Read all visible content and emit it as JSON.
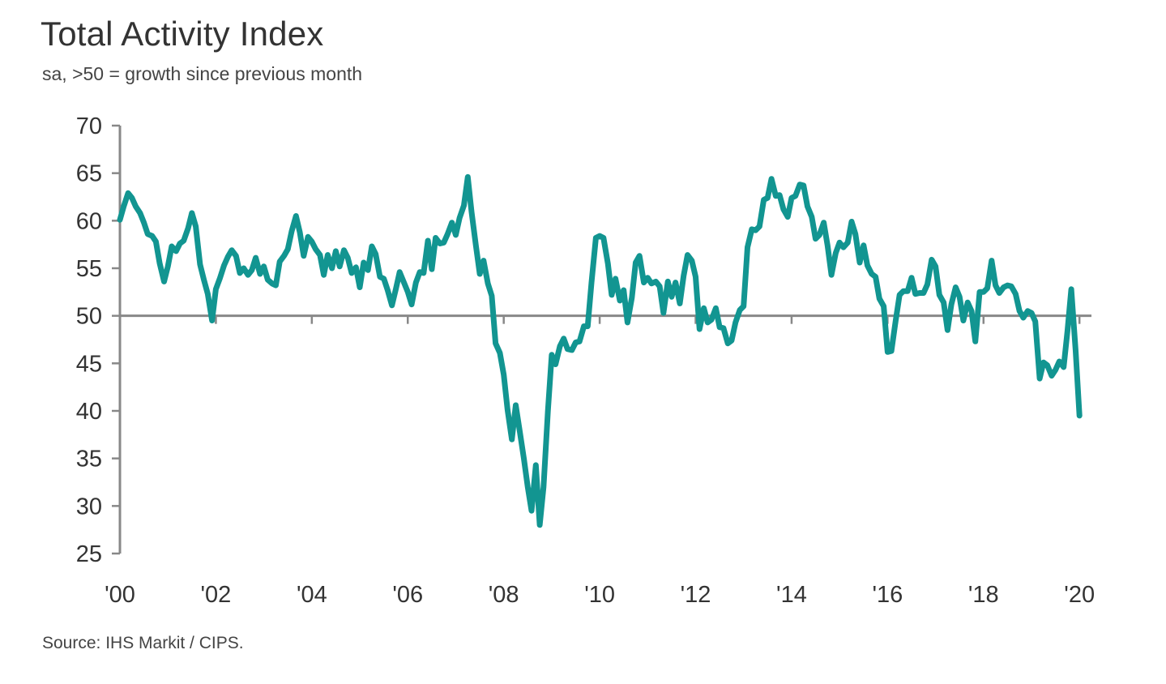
{
  "chart_data": {
    "type": "line",
    "title": "Total Activity Index",
    "subtitle": "sa, >50 = growth since previous month",
    "source": "Source: IHS Markit / CIPS.",
    "xlabel": "",
    "ylabel": "",
    "ylim": [
      25,
      70
    ],
    "xlim": [
      2000.0,
      2020.25
    ],
    "yticks": [
      "25",
      "30",
      "35",
      "40",
      "45",
      "50",
      "55",
      "60",
      "65",
      "70"
    ],
    "xticks": [
      {
        "year": 2000,
        "label": "'00"
      },
      {
        "year": 2002,
        "label": "'02"
      },
      {
        "year": 2004,
        "label": "'04"
      },
      {
        "year": 2006,
        "label": "'06"
      },
      {
        "year": 2008,
        "label": "'08"
      },
      {
        "year": 2010,
        "label": "'10"
      },
      {
        "year": 2012,
        "label": "'12"
      },
      {
        "year": 2014,
        "label": "'14"
      },
      {
        "year": 2016,
        "label": "'16"
      },
      {
        "year": 2018,
        "label": "'18"
      },
      {
        "year": 2020,
        "label": "'20"
      }
    ],
    "reference_line": 50,
    "grid": false,
    "colors": {
      "line": "#129591",
      "axis": "#888888"
    },
    "series": [
      {
        "points": [
          [
            2000.0,
            60.1
          ],
          [
            2000.08,
            61.5
          ],
          [
            2000.17,
            62.9
          ],
          [
            2000.25,
            62.4
          ],
          [
            2000.33,
            61.5
          ],
          [
            2000.42,
            60.8
          ],
          [
            2000.5,
            59.8
          ],
          [
            2000.58,
            58.6
          ],
          [
            2000.67,
            58.4
          ],
          [
            2000.75,
            57.8
          ],
          [
            2000.83,
            55.5
          ],
          [
            2000.92,
            53.6
          ],
          [
            2001.0,
            55.2
          ],
          [
            2001.08,
            57.3
          ],
          [
            2001.17,
            56.8
          ],
          [
            2001.25,
            57.6
          ],
          [
            2001.33,
            57.9
          ],
          [
            2001.42,
            59.2
          ],
          [
            2001.5,
            60.8
          ],
          [
            2001.58,
            59.4
          ],
          [
            2001.67,
            55.4
          ],
          [
            2001.75,
            53.8
          ],
          [
            2001.83,
            52.3
          ],
          [
            2001.92,
            49.5
          ],
          [
            2002.0,
            52.8
          ],
          [
            2002.08,
            53.9
          ],
          [
            2002.17,
            55.3
          ],
          [
            2002.25,
            56.2
          ],
          [
            2002.33,
            56.9
          ],
          [
            2002.42,
            56.3
          ],
          [
            2002.5,
            54.5
          ],
          [
            2002.58,
            55.0
          ],
          [
            2002.67,
            54.3
          ],
          [
            2002.75,
            54.8
          ],
          [
            2002.83,
            56.1
          ],
          [
            2002.92,
            54.4
          ],
          [
            2003.0,
            55.2
          ],
          [
            2003.08,
            53.8
          ],
          [
            2003.17,
            53.4
          ],
          [
            2003.25,
            53.2
          ],
          [
            2003.33,
            55.7
          ],
          [
            2003.42,
            56.3
          ],
          [
            2003.5,
            57.0
          ],
          [
            2003.58,
            58.9
          ],
          [
            2003.67,
            60.5
          ],
          [
            2003.75,
            58.8
          ],
          [
            2003.83,
            56.3
          ],
          [
            2003.92,
            58.3
          ],
          [
            2004.0,
            57.8
          ],
          [
            2004.08,
            57.0
          ],
          [
            2004.17,
            56.4
          ],
          [
            2004.25,
            54.3
          ],
          [
            2004.33,
            56.4
          ],
          [
            2004.42,
            55.0
          ],
          [
            2004.5,
            56.8
          ],
          [
            2004.58,
            55.2
          ],
          [
            2004.67,
            56.9
          ],
          [
            2004.75,
            56.1
          ],
          [
            2004.83,
            54.5
          ],
          [
            2004.92,
            55.1
          ],
          [
            2005.0,
            53.0
          ],
          [
            2005.08,
            55.6
          ],
          [
            2005.17,
            54.8
          ],
          [
            2005.25,
            57.3
          ],
          [
            2005.33,
            56.5
          ],
          [
            2005.42,
            54.1
          ],
          [
            2005.5,
            53.9
          ],
          [
            2005.58,
            52.7
          ],
          [
            2005.67,
            51.1
          ],
          [
            2005.75,
            52.8
          ],
          [
            2005.83,
            54.6
          ],
          [
            2005.92,
            53.5
          ],
          [
            2006.0,
            52.5
          ],
          [
            2006.08,
            51.2
          ],
          [
            2006.17,
            53.5
          ],
          [
            2006.25,
            54.6
          ],
          [
            2006.33,
            54.5
          ],
          [
            2006.42,
            57.9
          ],
          [
            2006.5,
            54.9
          ],
          [
            2006.58,
            58.2
          ],
          [
            2006.67,
            57.6
          ],
          [
            2006.75,
            57.7
          ],
          [
            2006.83,
            58.6
          ],
          [
            2006.92,
            59.8
          ],
          [
            2007.0,
            58.5
          ],
          [
            2007.08,
            60.3
          ],
          [
            2007.17,
            61.6
          ],
          [
            2007.25,
            64.6
          ],
          [
            2007.33,
            60.9
          ],
          [
            2007.42,
            57.4
          ],
          [
            2007.5,
            54.4
          ],
          [
            2007.58,
            55.8
          ],
          [
            2007.67,
            53.4
          ],
          [
            2007.75,
            52.1
          ],
          [
            2007.83,
            47.1
          ],
          [
            2007.92,
            46.1
          ],
          [
            2008.0,
            43.8
          ],
          [
            2008.08,
            40.1
          ],
          [
            2008.17,
            37.0
          ],
          [
            2008.25,
            40.6
          ],
          [
            2008.33,
            38.0
          ],
          [
            2008.42,
            35.0
          ],
          [
            2008.5,
            32.0
          ],
          [
            2008.58,
            29.5
          ],
          [
            2008.67,
            34.3
          ],
          [
            2008.75,
            28.0
          ],
          [
            2008.83,
            32.0
          ],
          [
            2008.92,
            40.0
          ],
          [
            2009.0,
            45.9
          ],
          [
            2009.08,
            44.9
          ],
          [
            2009.17,
            46.8
          ],
          [
            2009.25,
            47.6
          ],
          [
            2009.33,
            46.5
          ],
          [
            2009.42,
            46.4
          ],
          [
            2009.5,
            47.2
          ],
          [
            2009.58,
            47.3
          ],
          [
            2009.67,
            48.9
          ],
          [
            2009.75,
            48.9
          ],
          [
            2009.83,
            53.5
          ],
          [
            2009.92,
            58.2
          ],
          [
            2010.0,
            58.4
          ],
          [
            2010.08,
            58.2
          ],
          [
            2010.17,
            55.5
          ],
          [
            2010.25,
            52.2
          ],
          [
            2010.33,
            53.9
          ],
          [
            2010.42,
            51.6
          ],
          [
            2010.5,
            52.7
          ],
          [
            2010.58,
            49.3
          ],
          [
            2010.67,
            51.9
          ],
          [
            2010.75,
            55.6
          ],
          [
            2010.83,
            56.3
          ],
          [
            2010.92,
            53.5
          ],
          [
            2011.0,
            54.0
          ],
          [
            2011.08,
            53.4
          ],
          [
            2011.17,
            53.6
          ],
          [
            2011.25,
            53.1
          ],
          [
            2011.33,
            50.3
          ],
          [
            2011.42,
            53.6
          ],
          [
            2011.5,
            52.0
          ],
          [
            2011.58,
            53.5
          ],
          [
            2011.67,
            51.3
          ],
          [
            2011.75,
            54.2
          ],
          [
            2011.83,
            56.4
          ],
          [
            2011.92,
            55.8
          ],
          [
            2012.0,
            54.1
          ],
          [
            2012.08,
            48.6
          ],
          [
            2012.17,
            50.8
          ],
          [
            2012.25,
            49.3
          ],
          [
            2012.33,
            49.6
          ],
          [
            2012.42,
            50.8
          ],
          [
            2012.5,
            48.8
          ],
          [
            2012.58,
            48.7
          ],
          [
            2012.67,
            47.1
          ],
          [
            2012.75,
            47.4
          ],
          [
            2012.83,
            49.3
          ],
          [
            2012.92,
            50.6
          ],
          [
            2013.0,
            51.0
          ],
          [
            2013.08,
            57.2
          ],
          [
            2013.17,
            59.1
          ],
          [
            2013.25,
            59.0
          ],
          [
            2013.33,
            59.4
          ],
          [
            2013.42,
            62.2
          ],
          [
            2013.5,
            62.4
          ],
          [
            2013.58,
            64.4
          ],
          [
            2013.67,
            62.6
          ],
          [
            2013.75,
            62.7
          ],
          [
            2013.83,
            61.2
          ],
          [
            2013.92,
            60.4
          ],
          [
            2014.0,
            62.4
          ],
          [
            2014.08,
            62.6
          ],
          [
            2014.17,
            63.8
          ],
          [
            2014.25,
            63.7
          ],
          [
            2014.33,
            61.5
          ],
          [
            2014.42,
            60.4
          ],
          [
            2014.5,
            58.1
          ],
          [
            2014.58,
            58.5
          ],
          [
            2014.67,
            59.8
          ],
          [
            2014.75,
            57.4
          ],
          [
            2014.83,
            54.3
          ],
          [
            2014.92,
            56.6
          ],
          [
            2015.0,
            57.7
          ],
          [
            2015.08,
            57.2
          ],
          [
            2015.17,
            57.7
          ],
          [
            2015.25,
            59.9
          ],
          [
            2015.33,
            58.6
          ],
          [
            2015.42,
            55.6
          ],
          [
            2015.5,
            57.4
          ],
          [
            2015.58,
            55.3
          ],
          [
            2015.67,
            54.4
          ],
          [
            2015.75,
            54.1
          ],
          [
            2015.83,
            51.8
          ],
          [
            2015.92,
            51.0
          ],
          [
            2016.0,
            46.2
          ],
          [
            2016.08,
            46.3
          ],
          [
            2016.17,
            49.5
          ],
          [
            2016.25,
            52.2
          ],
          [
            2016.33,
            52.6
          ],
          [
            2016.42,
            52.6
          ],
          [
            2016.5,
            54.0
          ],
          [
            2016.58,
            52.3
          ],
          [
            2016.67,
            52.4
          ],
          [
            2016.75,
            52.4
          ],
          [
            2016.83,
            53.3
          ],
          [
            2016.92,
            55.9
          ],
          [
            2017.0,
            55.2
          ],
          [
            2017.08,
            52.2
          ],
          [
            2017.17,
            51.4
          ],
          [
            2017.25,
            48.5
          ],
          [
            2017.33,
            51.2
          ],
          [
            2017.42,
            53.0
          ],
          [
            2017.5,
            52.0
          ],
          [
            2017.58,
            49.5
          ],
          [
            2017.67,
            51.4
          ],
          [
            2017.75,
            50.5
          ],
          [
            2017.83,
            47.3
          ],
          [
            2017.92,
            52.5
          ],
          [
            2018.0,
            52.5
          ],
          [
            2018.08,
            52.9
          ],
          [
            2018.17,
            55.8
          ],
          [
            2018.25,
            53.2
          ],
          [
            2018.33,
            52.4
          ],
          [
            2018.42,
            53.0
          ],
          [
            2018.5,
            53.2
          ],
          [
            2018.58,
            53.1
          ],
          [
            2018.67,
            52.3
          ],
          [
            2018.75,
            50.5
          ],
          [
            2018.83,
            49.8
          ],
          [
            2018.92,
            50.5
          ],
          [
            2019.0,
            50.3
          ],
          [
            2019.08,
            49.4
          ],
          [
            2019.17,
            43.4
          ],
          [
            2019.25,
            45.1
          ],
          [
            2019.33,
            44.8
          ],
          [
            2019.42,
            43.7
          ],
          [
            2019.5,
            44.3
          ],
          [
            2019.58,
            45.2
          ],
          [
            2019.67,
            44.6
          ],
          [
            2019.75,
            48.4
          ],
          [
            2019.83,
            52.8
          ],
          [
            2019.92,
            46.3
          ],
          [
            2020.0,
            39.5
          ]
        ]
      }
    ]
  }
}
